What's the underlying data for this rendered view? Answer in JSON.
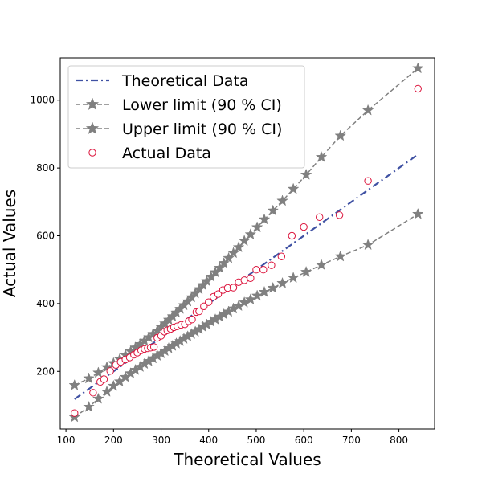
{
  "chart_data": {
    "type": "scatter",
    "title": "",
    "xlabel": "Theoretical Values",
    "ylabel": "Actual Values",
    "xlim": [
      88,
      875
    ],
    "ylim": [
      30,
      1125
    ],
    "xticks": [
      100,
      200,
      300,
      400,
      500,
      600,
      700,
      800
    ],
    "yticks": [
      200,
      400,
      600,
      800,
      1000
    ],
    "grid": false,
    "legend_position": "top-left",
    "colors": {
      "theoretical": "#3f51a3",
      "limits": "#808080",
      "actual": "#dc143c"
    },
    "series": [
      {
        "name": "Theoretical Data",
        "kind": "line",
        "style": "dash-dot",
        "x": [
          118,
          840
        ],
        "y": [
          118,
          840
        ]
      },
      {
        "name": "Lower limit (90 % CI)",
        "kind": "line-star",
        "style": "dashed",
        "x": [
          118,
          148,
          168,
          186,
          200,
          213,
          225,
          236,
          246,
          256,
          265,
          274,
          283,
          292,
          300,
          308,
          316,
          324,
          332,
          340,
          348,
          356,
          364,
          372,
          380,
          388,
          396,
          405,
          414,
          423,
          432,
          442,
          452,
          463,
          475,
          488,
          502,
          517,
          535,
          555,
          578,
          605,
          637,
          677,
          735,
          840
        ],
        "y": [
          65,
          95,
          119,
          140,
          157,
          170,
          183,
          194,
          204,
          213,
          222,
          230,
          238,
          246,
          253,
          260,
          268,
          275,
          282,
          289,
          296,
          303,
          310,
          317,
          324,
          331,
          338,
          346,
          353,
          361,
          368,
          376,
          385,
          393,
          403,
          412,
          423,
          434,
          446,
          460,
          476,
          493,
          514,
          539,
          573,
          664
        ]
      },
      {
        "name": "Upper limit (90 % CI)",
        "kind": "line-star",
        "style": "dashed",
        "x": [
          118,
          148,
          168,
          186,
          200,
          213,
          225,
          236,
          246,
          256,
          265,
          274,
          283,
          292,
          300,
          308,
          316,
          324,
          332,
          340,
          348,
          356,
          364,
          372,
          380,
          388,
          396,
          405,
          414,
          423,
          432,
          442,
          452,
          463,
          475,
          488,
          502,
          517,
          535,
          555,
          578,
          605,
          637,
          677,
          735,
          840
        ],
        "y": [
          159,
          179,
          196,
          212,
          224,
          236,
          248,
          259,
          270,
          280,
          290,
          300,
          310,
          320,
          331,
          341,
          352,
          362,
          373,
          384,
          395,
          406,
          418,
          430,
          442,
          454,
          466,
          479,
          492,
          505,
          519,
          534,
          549,
          566,
          585,
          604,
          625,
          648,
          674,
          703,
          738,
          780,
          832,
          895,
          970,
          1094
        ]
      },
      {
        "name": "Actual Data",
        "kind": "scatter",
        "marker": "open-circle",
        "x": [
          118,
          157,
          172,
          180,
          193,
          205,
          215,
          225,
          234,
          243,
          250,
          258,
          265,
          272,
          278,
          285,
          292,
          300,
          307,
          313,
          320,
          327,
          334,
          342,
          350,
          358,
          365,
          374,
          380,
          390,
          400,
          410,
          420,
          430,
          440,
          452,
          463,
          475,
          488,
          500,
          515,
          532,
          553,
          575,
          600,
          633,
          675,
          735,
          840
        ],
        "y": [
          77,
          137,
          169,
          177,
          201,
          219,
          228,
          235,
          241,
          249,
          255,
          262,
          266,
          268,
          270,
          272,
          299,
          305,
          317,
          321,
          325,
          330,
          333,
          337,
          339,
          348,
          353,
          375,
          377,
          392,
          404,
          420,
          428,
          440,
          446,
          447,
          463,
          469,
          475,
          500,
          500,
          513,
          539,
          600,
          626,
          655,
          661,
          762,
          1034
        ]
      }
    ]
  }
}
